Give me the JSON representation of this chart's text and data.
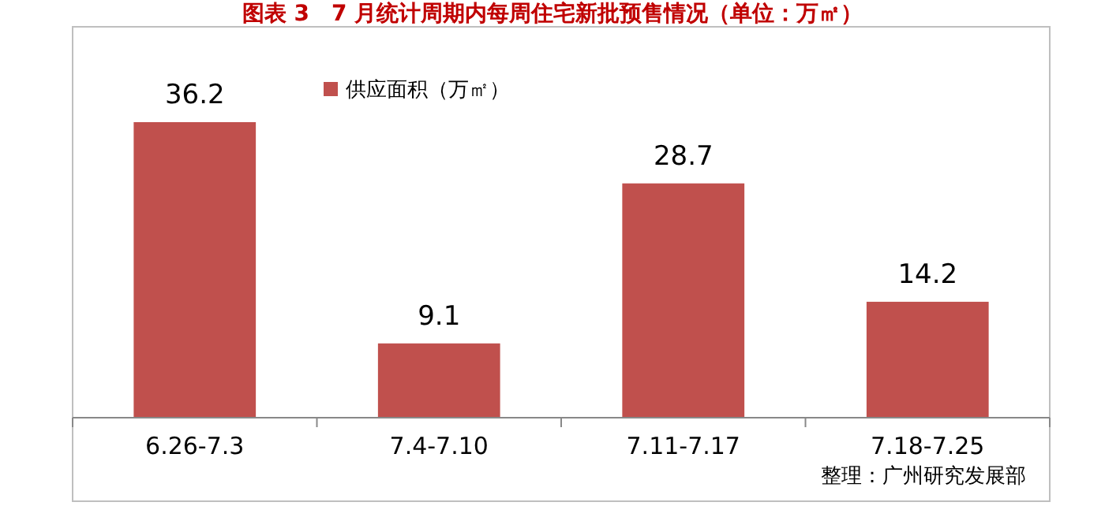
{
  "chart_data": {
    "type": "bar",
    "title": "图表 3　7 月统计周期内每周住宅新批预售情况（单位：万㎡）",
    "categories": [
      "6.26-7.3",
      "7.4-7.10",
      "7.11-7.17",
      "7.18-7.25"
    ],
    "series": [
      {
        "name": "供应面积（万㎡）",
        "color": "#c0504d",
        "values": [
          36.2,
          9.1,
          28.7,
          14.2
        ]
      }
    ],
    "data_labels": true,
    "legend": "top left",
    "grid": false,
    "annotations": [
      "整理：广州研究发展部"
    ]
  }
}
